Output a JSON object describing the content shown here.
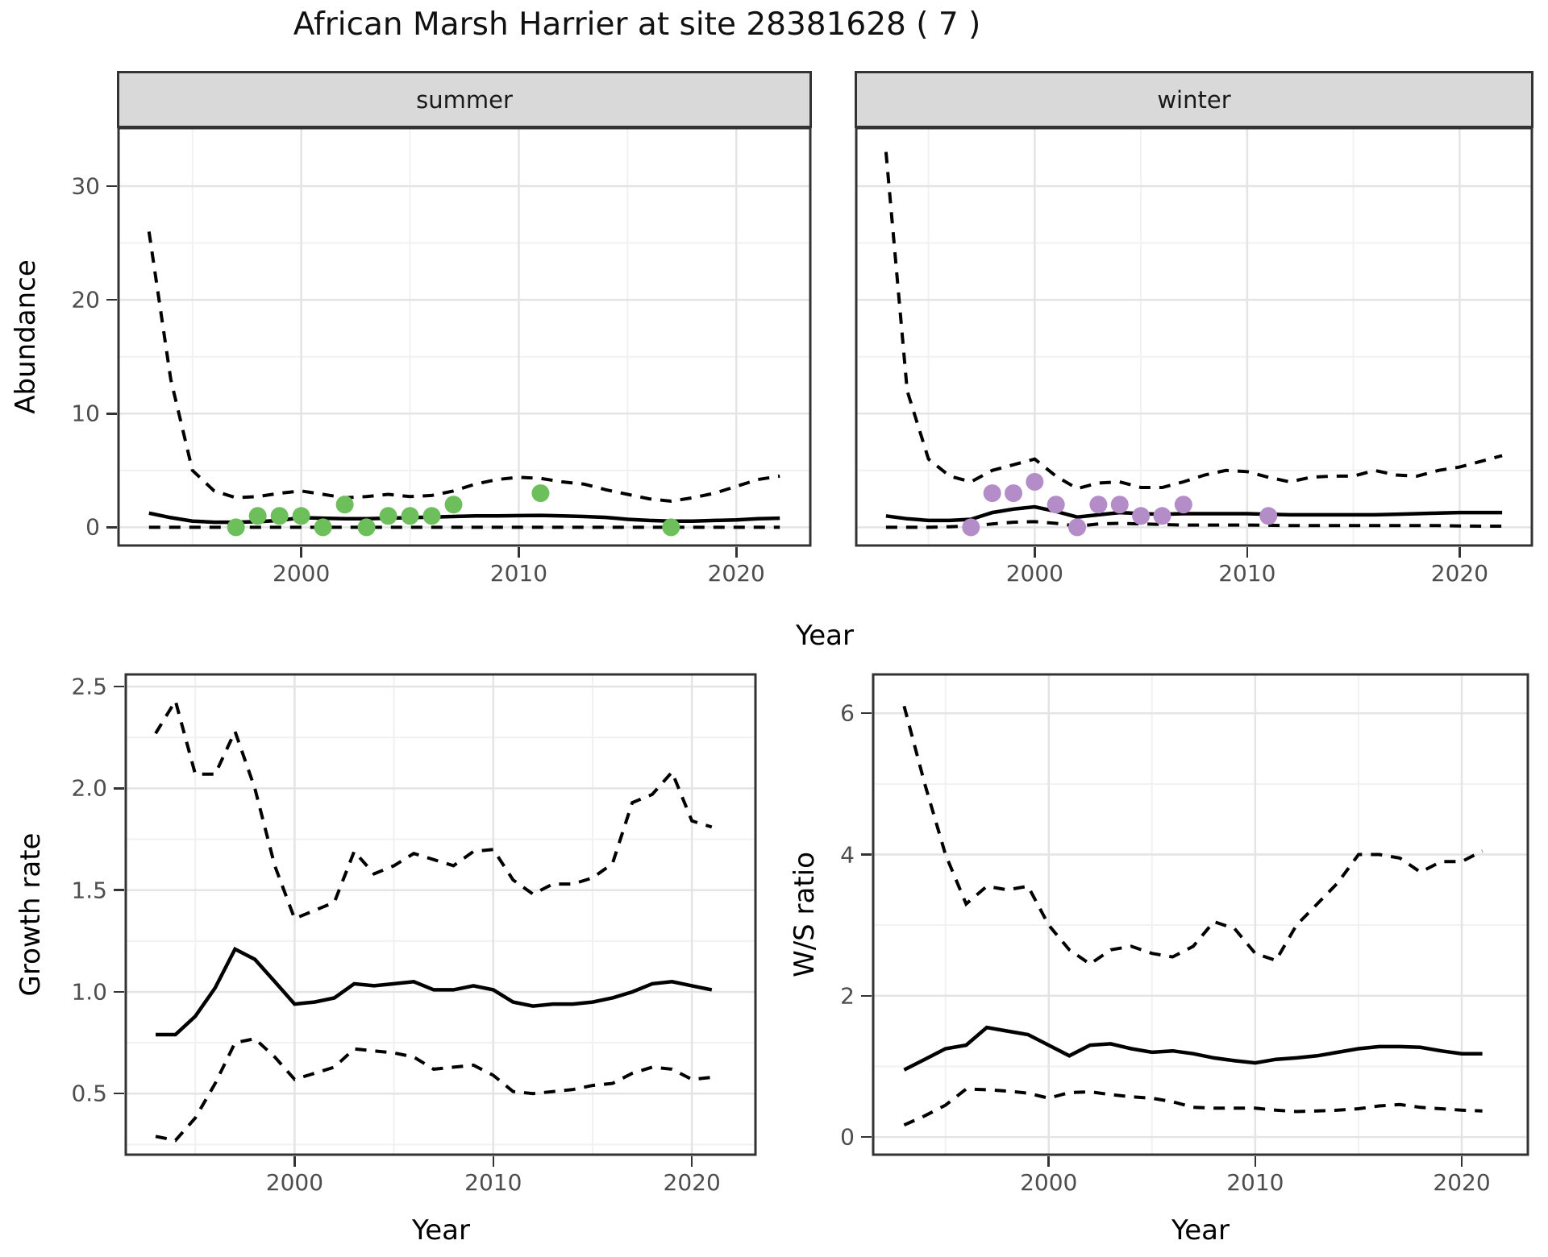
{
  "title": "African Marsh Harrier at site 28381628 ( 7 )",
  "colors": {
    "summer_points": "#6CBF5A",
    "winter_points": "#B48CC8",
    "line": "#000000",
    "strip_fill": "#d9d9d9",
    "panel_border": "#333333",
    "grid_major": "#e4e4e4",
    "grid_minor": "#f1f1f1",
    "tick_text": "#4d4d4d"
  },
  "top_row": {
    "y_axis_title": "Abundance",
    "x_axis_title": "Year"
  },
  "chart_data": [
    {
      "id": "abundance-summer",
      "type": "line",
      "facet_label": "summer",
      "xlabel": "Year",
      "ylabel": "Abundance",
      "xlim": [
        1991.6,
        2023.4
      ],
      "ylim": [
        -1.6,
        35.1
      ],
      "x_ticks": [
        2000,
        2010,
        2020
      ],
      "x_tick_labels": [
        "2000",
        "2010",
        "2020"
      ],
      "x_minor": [
        1995,
        2005,
        2015
      ],
      "y_ticks": [
        0,
        10,
        20,
        30
      ],
      "y_tick_labels": [
        "0",
        "10",
        "20",
        "30"
      ],
      "y_minor": [
        5,
        15,
        25
      ],
      "years": [
        1993,
        1994,
        1995,
        1996,
        1997,
        1998,
        1999,
        2000,
        2001,
        2002,
        2003,
        2004,
        2005,
        2006,
        2007,
        2008,
        2009,
        2010,
        2011,
        2012,
        2013,
        2014,
        2015,
        2016,
        2017,
        2018,
        2019,
        2020,
        2021,
        2022
      ],
      "series": [
        {
          "name": "upper_ci",
          "style": "dashed",
          "values": [
            26,
            13,
            5,
            3.2,
            2.6,
            2.7,
            3.0,
            3.2,
            2.9,
            2.6,
            2.7,
            2.9,
            2.7,
            2.8,
            3.2,
            3.8,
            4.2,
            4.4,
            4.3,
            4.0,
            3.8,
            3.3,
            2.9,
            2.5,
            2.3,
            2.6,
            3.0,
            3.6,
            4.2,
            4.5
          ]
        },
        {
          "name": "median",
          "style": "solid",
          "values": [
            1.25,
            0.85,
            0.55,
            0.45,
            0.45,
            0.5,
            0.6,
            0.85,
            0.8,
            0.75,
            0.75,
            0.8,
            0.85,
            0.9,
            0.95,
            1.0,
            1.0,
            1.03,
            1.05,
            1.0,
            0.95,
            0.87,
            0.7,
            0.6,
            0.55,
            0.55,
            0.6,
            0.65,
            0.75,
            0.8
          ]
        },
        {
          "name": "lower_ci",
          "style": "dashed",
          "values": [
            0,
            0,
            0,
            0,
            0,
            0,
            0,
            0,
            0,
            0,
            0,
            0,
            0,
            0,
            0,
            0,
            0,
            0,
            0,
            0,
            0,
            0,
            0,
            0,
            0,
            0,
            0,
            0,
            0,
            0
          ]
        }
      ],
      "points": {
        "color": "#6CBF5A",
        "data": [
          {
            "year": 1997,
            "value": 0
          },
          {
            "year": 1998,
            "value": 1
          },
          {
            "year": 1999,
            "value": 1
          },
          {
            "year": 2000,
            "value": 1
          },
          {
            "year": 2001,
            "value": 0
          },
          {
            "year": 2002,
            "value": 2
          },
          {
            "year": 2003,
            "value": 0
          },
          {
            "year": 2004,
            "value": 1
          },
          {
            "year": 2005,
            "value": 1
          },
          {
            "year": 2006,
            "value": 1
          },
          {
            "year": 2007,
            "value": 2
          },
          {
            "year": 2011,
            "value": 3
          },
          {
            "year": 2017,
            "value": 0
          }
        ]
      }
    },
    {
      "id": "abundance-winter",
      "type": "line",
      "facet_label": "winter",
      "xlabel": "Year",
      "ylabel": "Abundance",
      "xlim": [
        1991.6,
        2023.4
      ],
      "ylim": [
        -1.6,
        35.1
      ],
      "x_ticks": [
        2000,
        2010,
        2020
      ],
      "x_tick_labels": [
        "2000",
        "2010",
        "2020"
      ],
      "x_minor": [
        1995,
        2005,
        2015
      ],
      "y_ticks": [
        0,
        10,
        20,
        30
      ],
      "y_tick_labels": [
        "0",
        "10",
        "20",
        "30"
      ],
      "y_minor": [
        5,
        15,
        25
      ],
      "years": [
        1993,
        1994,
        1995,
        1996,
        1997,
        1998,
        1999,
        2000,
        2001,
        2002,
        2003,
        2004,
        2005,
        2006,
        2007,
        2008,
        2009,
        2010,
        2011,
        2012,
        2013,
        2014,
        2015,
        2016,
        2017,
        2018,
        2019,
        2020,
        2021,
        2022
      ],
      "series": [
        {
          "name": "upper_ci",
          "style": "dashed",
          "values": [
            33,
            12,
            6,
            4.5,
            4.0,
            5.0,
            5.5,
            6.0,
            4.5,
            3.4,
            3.9,
            4.0,
            3.5,
            3.5,
            4.0,
            4.6,
            5.0,
            4.9,
            4.4,
            4.0,
            4.4,
            4.5,
            4.5,
            5.0,
            4.6,
            4.5,
            5.0,
            5.3,
            5.8,
            6.3
          ]
        },
        {
          "name": "median",
          "style": "solid",
          "values": [
            1.0,
            0.75,
            0.6,
            0.6,
            0.7,
            1.3,
            1.6,
            1.8,
            1.4,
            0.9,
            1.1,
            1.3,
            1.2,
            1.15,
            1.2,
            1.2,
            1.2,
            1.2,
            1.15,
            1.1,
            1.1,
            1.1,
            1.1,
            1.1,
            1.15,
            1.2,
            1.25,
            1.3,
            1.3,
            1.3
          ]
        },
        {
          "name": "lower_ci",
          "style": "dashed",
          "values": [
            0,
            0,
            0,
            0.05,
            0.1,
            0.3,
            0.45,
            0.5,
            0.35,
            0.1,
            0.3,
            0.35,
            0.3,
            0.25,
            0.2,
            0.2,
            0.2,
            0.2,
            0.18,
            0.15,
            0.15,
            0.15,
            0.15,
            0.15,
            0.15,
            0.15,
            0.15,
            0.12,
            0.1,
            0.1
          ]
        }
      ],
      "points": {
        "color": "#B48CC8",
        "data": [
          {
            "year": 1997,
            "value": 0
          },
          {
            "year": 1998,
            "value": 3
          },
          {
            "year": 1999,
            "value": 3
          },
          {
            "year": 2000,
            "value": 4
          },
          {
            "year": 2001,
            "value": 2
          },
          {
            "year": 2002,
            "value": 0
          },
          {
            "year": 2003,
            "value": 2
          },
          {
            "year": 2004,
            "value": 2
          },
          {
            "year": 2005,
            "value": 1
          },
          {
            "year": 2006,
            "value": 1
          },
          {
            "year": 2007,
            "value": 2
          },
          {
            "year": 2011,
            "value": 1
          }
        ]
      }
    },
    {
      "id": "growth-rate",
      "type": "line",
      "facet_label": "",
      "xlabel": "Year",
      "ylabel": "Growth rate",
      "xlim": [
        1991.5,
        2023.2
      ],
      "ylim": [
        0.2,
        2.56
      ],
      "x_ticks": [
        2000,
        2010,
        2020
      ],
      "x_tick_labels": [
        "2000",
        "2010",
        "2020"
      ],
      "x_minor": [
        1995,
        2005,
        2015
      ],
      "y_ticks": [
        0.5,
        1.0,
        1.5,
        2.0,
        2.5
      ],
      "y_tick_labels": [
        "0.5",
        "1.0",
        "1.5",
        "2.0",
        "2.5"
      ],
      "y_minor": [
        0.25,
        0.75,
        1.25,
        1.75,
        2.25
      ],
      "years": [
        1993,
        1994,
        1995,
        1996,
        1997,
        1998,
        1999,
        2000,
        2001,
        2002,
        2003,
        2004,
        2005,
        2006,
        2007,
        2008,
        2009,
        2010,
        2011,
        2012,
        2013,
        2014,
        2015,
        2016,
        2017,
        2018,
        2019,
        2020,
        2021
      ],
      "series": [
        {
          "name": "upper_ci",
          "style": "dashed",
          "values": [
            2.27,
            2.43,
            2.07,
            2.07,
            2.28,
            2.0,
            1.62,
            1.36,
            1.4,
            1.44,
            1.69,
            1.58,
            1.62,
            1.68,
            1.65,
            1.62,
            1.69,
            1.7,
            1.55,
            1.48,
            1.53,
            1.53,
            1.56,
            1.63,
            1.93,
            1.97,
            2.08,
            1.84,
            1.81
          ]
        },
        {
          "name": "median",
          "style": "solid",
          "values": [
            0.79,
            0.79,
            0.88,
            1.02,
            1.21,
            1.16,
            1.05,
            0.94,
            0.95,
            0.97,
            1.04,
            1.03,
            1.04,
            1.05,
            1.01,
            1.01,
            1.03,
            1.01,
            0.95,
            0.93,
            0.94,
            0.94,
            0.95,
            0.97,
            1.0,
            1.04,
            1.05,
            1.03,
            1.01
          ]
        },
        {
          "name": "lower_ci",
          "style": "dashed",
          "values": [
            0.29,
            0.27,
            0.38,
            0.55,
            0.75,
            0.77,
            0.68,
            0.57,
            0.6,
            0.63,
            0.72,
            0.71,
            0.7,
            0.68,
            0.62,
            0.63,
            0.64,
            0.59,
            0.51,
            0.5,
            0.51,
            0.52,
            0.54,
            0.55,
            0.6,
            0.63,
            0.62,
            0.57,
            0.58
          ]
        }
      ],
      "points": {
        "color": "",
        "data": []
      }
    },
    {
      "id": "ws-ratio",
      "type": "line",
      "facet_label": "",
      "xlabel": "Year",
      "ylabel": "W/S ratio",
      "xlim": [
        1991.5,
        2023.2
      ],
      "ylim": [
        -0.25,
        6.55
      ],
      "x_ticks": [
        2000,
        2010,
        2020
      ],
      "x_tick_labels": [
        "2000",
        "2010",
        "2020"
      ],
      "x_minor": [
        1995,
        2005,
        2015
      ],
      "y_ticks": [
        0,
        2,
        4,
        6
      ],
      "y_tick_labels": [
        "0",
        "2",
        "4",
        "6"
      ],
      "y_minor": [
        1,
        3,
        5
      ],
      "years": [
        1993,
        1994,
        1995,
        1996,
        1997,
        1998,
        1999,
        2000,
        2001,
        2002,
        2003,
        2004,
        2005,
        2006,
        2007,
        2008,
        2009,
        2010,
        2011,
        2012,
        2013,
        2014,
        2015,
        2016,
        2017,
        2018,
        2019,
        2020,
        2021
      ],
      "series": [
        {
          "name": "upper_ci",
          "style": "dashed",
          "values": [
            6.1,
            5.0,
            4.0,
            3.3,
            3.55,
            3.5,
            3.55,
            3.0,
            2.65,
            2.45,
            2.65,
            2.7,
            2.6,
            2.55,
            2.7,
            3.05,
            2.95,
            2.6,
            2.5,
            3.0,
            3.3,
            3.6,
            4.0,
            4.0,
            3.95,
            3.75,
            3.9,
            3.9,
            4.05
          ]
        },
        {
          "name": "median",
          "style": "solid",
          "values": [
            0.95,
            1.1,
            1.25,
            1.3,
            1.55,
            1.5,
            1.45,
            1.3,
            1.15,
            1.3,
            1.32,
            1.25,
            1.2,
            1.22,
            1.18,
            1.12,
            1.08,
            1.05,
            1.1,
            1.12,
            1.15,
            1.2,
            1.25,
            1.28,
            1.28,
            1.27,
            1.22,
            1.18,
            1.18
          ]
        },
        {
          "name": "lower_ci",
          "style": "dashed",
          "values": [
            0.17,
            0.3,
            0.45,
            0.68,
            0.67,
            0.65,
            0.62,
            0.55,
            0.63,
            0.64,
            0.6,
            0.57,
            0.55,
            0.5,
            0.42,
            0.41,
            0.41,
            0.41,
            0.38,
            0.36,
            0.37,
            0.38,
            0.4,
            0.44,
            0.46,
            0.42,
            0.4,
            0.38,
            0.37
          ]
        }
      ],
      "points": {
        "color": "",
        "data": []
      }
    }
  ]
}
